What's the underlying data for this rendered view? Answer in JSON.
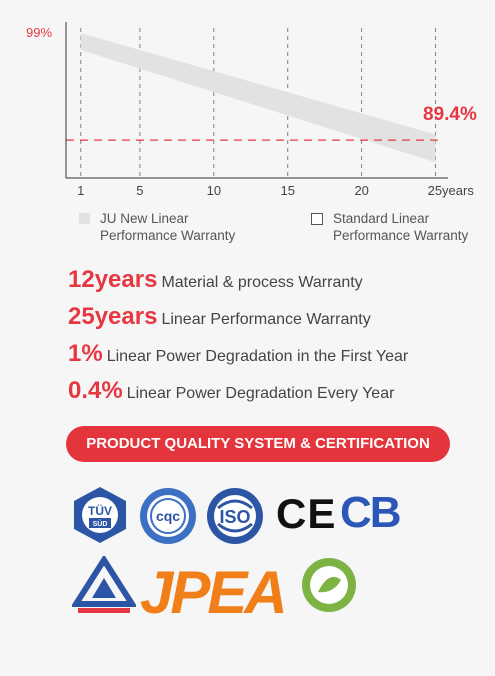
{
  "chart_data": {
    "type": "area",
    "x_ticks": [
      "1",
      "5",
      "10",
      "15",
      "20",
      "25years"
    ],
    "x_values": [
      1,
      5,
      10,
      15,
      20,
      25
    ],
    "xlim": [
      0,
      25.5
    ],
    "ylim": [
      86,
      100
    ],
    "series": [
      {
        "name": "JU New Linear Performance Warranty",
        "start": {
          "x": 1,
          "y_low": 97.5,
          "y_high": 99
        },
        "end": {
          "x": 25,
          "y_low": 87.4,
          "y_high": 89.9
        },
        "color": "#e2e2e2"
      }
    ],
    "reference_line": {
      "y": 89.4,
      "color": "#e53843",
      "style": "dashed"
    },
    "labels": {
      "top_left": "99%",
      "right": "89.4%"
    },
    "grid": "vertical dashed lines at ticks",
    "legend": [
      {
        "label": "JU New Linear Performance Warranty",
        "swatch": "filled-gray"
      },
      {
        "label": "Standard Linear Performance Warranty",
        "swatch": "outline"
      }
    ]
  },
  "legend": {
    "item1_line1": "JU New Linear",
    "item1_line2": "Performance Warranty",
    "item2_line1": "Standard Linear",
    "item2_line2": "Performance Warranty"
  },
  "features": [
    {
      "num": "12years",
      "text": "Material & process Warranty"
    },
    {
      "num": "25years",
      "text": "Linear Performance Warranty"
    },
    {
      "num": "1%",
      "text": "Linear Power Degradation in the First Year"
    },
    {
      "num": "0.4%",
      "text": "Linear Power Degradation Every Year"
    }
  ],
  "certification": {
    "banner": "PRODUCT QUALITY SYSTEM & CERTIFICATION",
    "logos": [
      "TÜV SÜD",
      "CQC",
      "ISO",
      "CE",
      "CB",
      "BIS",
      "JPEA",
      "Mansaku"
    ],
    "tuv_line1": "TÜV",
    "tuv_line2": "SÜD",
    "cqc": "cqc",
    "iso": "ISO",
    "ce": "CE",
    "cb": "CB",
    "jpea": "JPEA"
  },
  "colors": {
    "accent": "#e53843",
    "cb_blue": "#2a57b8",
    "jpea_orange": "#f07f1a",
    "band_gray": "#e2e2e2"
  }
}
